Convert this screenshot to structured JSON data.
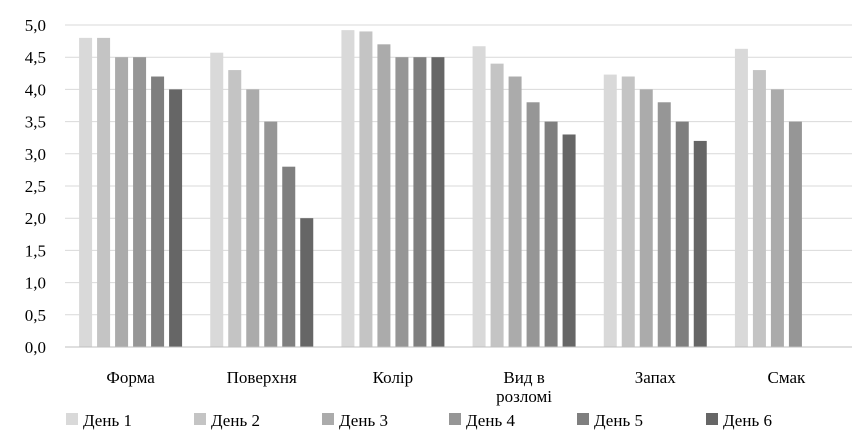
{
  "chart_data": {
    "type": "bar",
    "categories": [
      [
        "Форма"
      ],
      [
        "Поверхня"
      ],
      [
        "Колір"
      ],
      [
        "Вид в",
        "розломі"
      ],
      [
        "Запах"
      ],
      [
        "Смак"
      ]
    ],
    "series": [
      {
        "name": "День 1",
        "color": "#d9d9d9",
        "values": [
          4.8,
          4.57,
          4.92,
          4.67,
          4.23,
          4.63
        ]
      },
      {
        "name": "День 2",
        "color": "#c4c4c4",
        "values": [
          4.8,
          4.3,
          4.9,
          4.4,
          4.2,
          4.3
        ]
      },
      {
        "name": "День 3",
        "color": "#ababab",
        "values": [
          4.5,
          4.0,
          4.7,
          4.2,
          4.0,
          4.0
        ]
      },
      {
        "name": "День 4",
        "color": "#969696",
        "values": [
          4.5,
          3.5,
          4.5,
          3.8,
          3.8,
          3.5
        ]
      },
      {
        "name": "День 5",
        "color": "#7f7f7f",
        "values": [
          4.2,
          2.8,
          4.5,
          3.5,
          3.5,
          null
        ]
      },
      {
        "name": "День 6",
        "color": "#666666",
        "values": [
          4.0,
          2.0,
          4.5,
          3.3,
          3.2,
          null
        ]
      }
    ],
    "y_ticks": [
      "0,0",
      "0,5",
      "1,0",
      "1,5",
      "2,0",
      "2,5",
      "3,0",
      "3,5",
      "4,0",
      "4,5",
      "5,0"
    ],
    "ylim": [
      0,
      5
    ],
    "grid": true,
    "legend_position": "bottom"
  }
}
